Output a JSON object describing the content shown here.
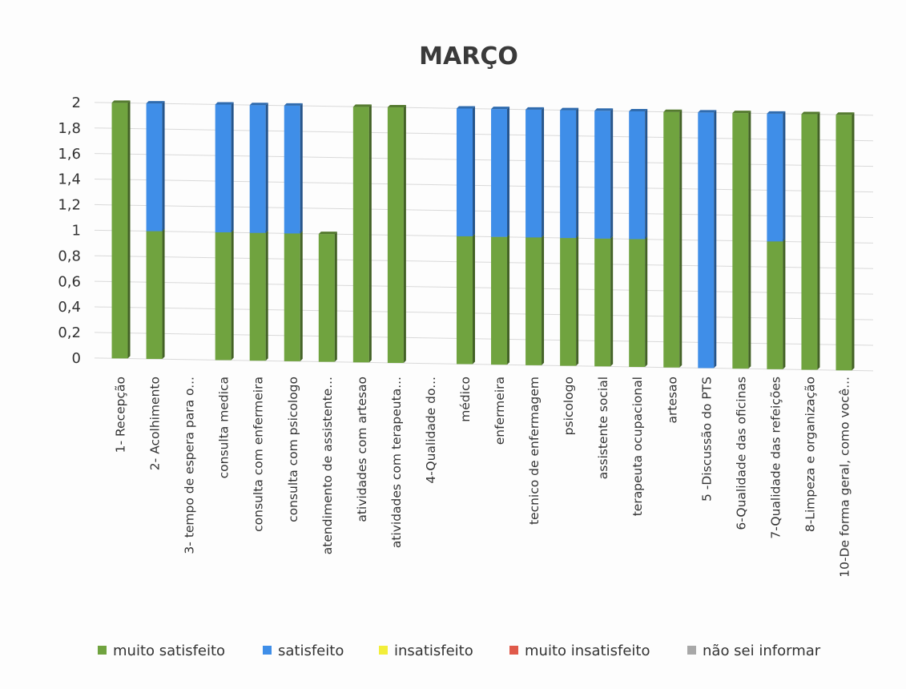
{
  "chart_data": {
    "type": "bar",
    "stacked": true,
    "title": "MARÇO",
    "xlabel": "",
    "ylabel": "",
    "ylim": [
      0,
      2
    ],
    "y_ticks": [
      "0",
      "0,2",
      "0,4",
      "0,6",
      "0,8",
      "1",
      "1,2",
      "1,4",
      "1,6",
      "1,8",
      "2"
    ],
    "grid": true,
    "legend_position": "bottom",
    "categories": [
      "1- Recepção",
      "2- Acolhimento",
      "3- tempo de espera para o...",
      "consulta medica",
      "consulta com enfermeira",
      "consulta com psicologo",
      "atendimento de assistente...",
      "atividades com artesao",
      "atividades com terapeuta...",
      "4-Qualidade do...",
      "médico",
      "enfermeira",
      "tecnico de enfermagem",
      "psicologo",
      "assistente social",
      "terapeuta ocupacional",
      "artesao",
      "5 -Discussão do PTS",
      "6-Qualidade das oficinas",
      "7-Qualidade das refeições",
      "8-Limpeza e organização",
      "10-De forma geral, como você..."
    ],
    "series": [
      {
        "name": "muito satisfeito",
        "color": "#70a33f",
        "values": [
          2,
          1,
          0,
          1,
          1,
          1,
          1,
          2,
          2,
          0,
          1,
          1,
          1,
          1,
          1,
          1,
          2,
          0,
          2,
          1,
          2,
          2
        ]
      },
      {
        "name": "satisfeito",
        "color": "#3f8ee8",
        "values": [
          0,
          1,
          0,
          1,
          1,
          1,
          0,
          0,
          0,
          0,
          1,
          1,
          1,
          1,
          1,
          1,
          0,
          2,
          0,
          1,
          0,
          0
        ]
      },
      {
        "name": "insatisfeito",
        "color": "#f2ee3a",
        "values": [
          0,
          0,
          0,
          0,
          0,
          0,
          0,
          0,
          0,
          0,
          0,
          0,
          0,
          0,
          0,
          0,
          0,
          0,
          0,
          0,
          0,
          0
        ]
      },
      {
        "name": "muito insatisfeito",
        "color": "#e05a4a",
        "values": [
          0,
          0,
          0,
          0,
          0,
          0,
          0,
          0,
          0,
          0,
          0,
          0,
          0,
          0,
          0,
          0,
          0,
          0,
          0,
          0,
          0,
          0
        ]
      },
      {
        "name": "não sei informar",
        "color": "#a8a8a8",
        "values": [
          0,
          0,
          0,
          0,
          0,
          0,
          0,
          0,
          0,
          0,
          0,
          0,
          0,
          0,
          0,
          0,
          0,
          0,
          0,
          0,
          0,
          0
        ]
      }
    ]
  }
}
